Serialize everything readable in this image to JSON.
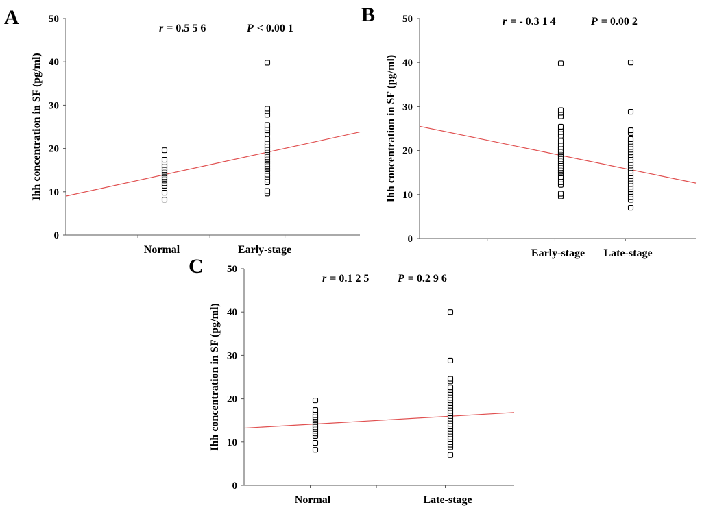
{
  "chart_data": [
    {
      "id": "A",
      "type": "scatter",
      "panel_label": "A",
      "ylabel": "Ihh concentration in SF (pg/ml)",
      "xlabel": "",
      "ylim": [
        0,
        50
      ],
      "yticks": [
        0,
        10,
        20,
        30,
        40,
        50
      ],
      "categories": [
        "Normal",
        "Early-stage"
      ],
      "stats": {
        "r_label": "r",
        "r_value": "= 0.5 5 6",
        "p_label": "P",
        "p_value": "< 0.00 1"
      },
      "series": [
        {
          "name": "Normal",
          "values": [
            8.2,
            9.8,
            11.4,
            12.0,
            12.6,
            13.0,
            13.4,
            13.8,
            14.2,
            14.6,
            15.0,
            15.4,
            15.8,
            16.2,
            16.8,
            17.4,
            19.6
          ]
        },
        {
          "name": "Early-stage",
          "values": [
            9.6,
            10.2,
            12.2,
            12.8,
            13.4,
            14.0,
            14.8,
            15.2,
            15.6,
            16.0,
            16.4,
            16.8,
            17.2,
            17.6,
            18.0,
            18.4,
            18.8,
            19.2,
            19.6,
            20.0,
            20.4,
            20.8,
            21.4,
            22.2,
            23.4,
            24.2,
            24.8,
            25.4,
            27.8,
            28.6,
            29.2,
            39.8
          ]
        }
      ],
      "fit_line": {
        "x0": 0.0,
        "y0": 9.0,
        "x1": 2.75,
        "y1": 23.8
      }
    },
    {
      "id": "B",
      "type": "scatter",
      "panel_label": "B",
      "ylabel": "Ihh concentration in SF (pg/ml)",
      "xlabel": "",
      "ylim": [
        0,
        50
      ],
      "yticks": [
        0,
        10,
        20,
        30,
        40,
        50
      ],
      "categories": [
        "Early-stage",
        "Late-stage"
      ],
      "stats": {
        "r_label": "r",
        "r_value": "= - 0.3 1 4",
        "p_label": "P",
        "p_value": "= 0.00 2"
      },
      "series": [
        {
          "name": "Early-stage",
          "values": [
            9.6,
            10.2,
            12.2,
            12.8,
            13.4,
            14.0,
            14.8,
            15.2,
            15.6,
            16.0,
            16.4,
            16.8,
            17.2,
            17.6,
            18.0,
            18.4,
            18.8,
            19.2,
            19.6,
            20.0,
            20.4,
            20.8,
            21.4,
            22.2,
            23.4,
            24.2,
            24.8,
            25.4,
            27.8,
            28.6,
            29.2,
            39.8
          ]
        },
        {
          "name": "Late-stage",
          "values": [
            7.0,
            8.8,
            9.4,
            10.0,
            10.6,
            11.2,
            11.8,
            12.4,
            13.0,
            13.6,
            14.2,
            14.8,
            15.4,
            16.0,
            16.6,
            17.2,
            17.8,
            18.4,
            19.0,
            19.6,
            20.2,
            20.8,
            21.4,
            22.0,
            22.6,
            24.0,
            24.6,
            28.8,
            40.0
          ]
        }
      ],
      "fit_line": {
        "x0": 0.0,
        "y0": 25.5,
        "x1": 2.75,
        "y1": 12.6
      }
    },
    {
      "id": "C",
      "type": "scatter",
      "panel_label": "C",
      "ylabel": "Ihh concentration in SF (pg/ml)",
      "xlabel": "",
      "ylim": [
        0,
        50
      ],
      "yticks": [
        0,
        10,
        20,
        30,
        40,
        50
      ],
      "categories": [
        "Normal",
        "Late-stage"
      ],
      "stats": {
        "r_label": "r",
        "r_value": "= 0.1 2 5",
        "p_label": "P",
        "p_value": "= 0.2 9 6"
      },
      "series": [
        {
          "name": "Normal",
          "values": [
            8.2,
            9.8,
            11.4,
            12.0,
            12.6,
            13.0,
            13.4,
            13.8,
            14.2,
            14.6,
            15.0,
            15.4,
            15.8,
            16.2,
            16.8,
            17.4,
            19.6
          ]
        },
        {
          "name": "Late-stage",
          "values": [
            7.0,
            8.8,
            9.4,
            10.0,
            10.6,
            11.2,
            11.8,
            12.4,
            13.0,
            13.6,
            14.2,
            14.8,
            15.4,
            16.0,
            16.6,
            17.2,
            17.8,
            18.4,
            19.0,
            19.6,
            20.2,
            20.8,
            21.4,
            22.0,
            22.6,
            24.0,
            24.6,
            28.8,
            40.0
          ]
        }
      ],
      "fit_line": {
        "x0": 0.0,
        "y0": 13.2,
        "x1": 2.75,
        "y1": 16.8
      }
    }
  ]
}
